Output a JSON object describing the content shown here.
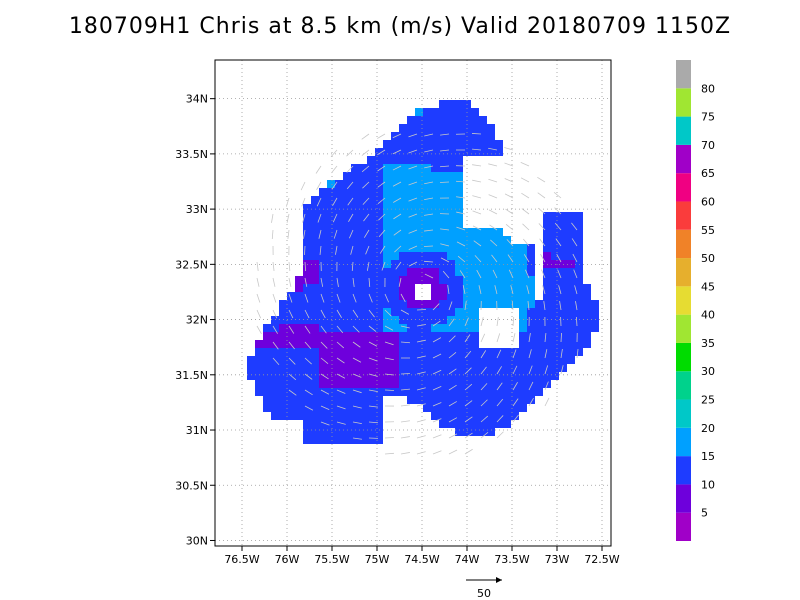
{
  "title": "180709H1 Chris at 8.5 km (m/s) Valid 20180709 1150Z",
  "map": {
    "lon_ticks": [
      {
        "value": -76.5,
        "label": "76.5W"
      },
      {
        "value": -76.0,
        "label": "76W"
      },
      {
        "value": -75.5,
        "label": "75.5W"
      },
      {
        "value": -75.0,
        "label": "75W"
      },
      {
        "value": -74.5,
        "label": "74.5W"
      },
      {
        "value": -74.0,
        "label": "74W"
      },
      {
        "value": -73.5,
        "label": "73.5W"
      },
      {
        "value": -73.0,
        "label": "73W"
      },
      {
        "value": -72.5,
        "label": "72.5W"
      }
    ],
    "lat_ticks": [
      {
        "value": 30.0,
        "label": "30N"
      },
      {
        "value": 30.5,
        "label": "30.5N"
      },
      {
        "value": 31.0,
        "label": "31N"
      },
      {
        "value": 31.5,
        "label": "31.5N"
      },
      {
        "value": 32.0,
        "label": "32N"
      },
      {
        "value": 32.5,
        "label": "32.5N"
      },
      {
        "value": 33.0,
        "label": "33N"
      },
      {
        "value": 33.5,
        "label": "33.5N"
      },
      {
        "value": 34.0,
        "label": "34N"
      }
    ],
    "lon_range": [
      -76.8,
      -72.4
    ],
    "lat_range": [
      29.95,
      34.35
    ],
    "grid": true,
    "storm_center": {
      "lon": -74.5,
      "lat": 32.27
    }
  },
  "colorbar": {
    "labels": [
      "5",
      "10",
      "15",
      "20",
      "25",
      "30",
      "35",
      "40",
      "45",
      "50",
      "55",
      "60",
      "65",
      "70",
      "75",
      "80"
    ],
    "colors": [
      "#a000c8",
      "#6e00dc",
      "#1e3cff",
      "#00a0ff",
      "#00c8c8",
      "#00d28c",
      "#00dc00",
      "#a0e632",
      "#e6dc32",
      "#e6af2d",
      "#f08228",
      "#fa3c3c",
      "#f00082",
      "#a000c8",
      "#00c8c8",
      "#a0e632",
      "#aaaaaa"
    ]
  },
  "vector_legend": {
    "label": "50"
  }
}
